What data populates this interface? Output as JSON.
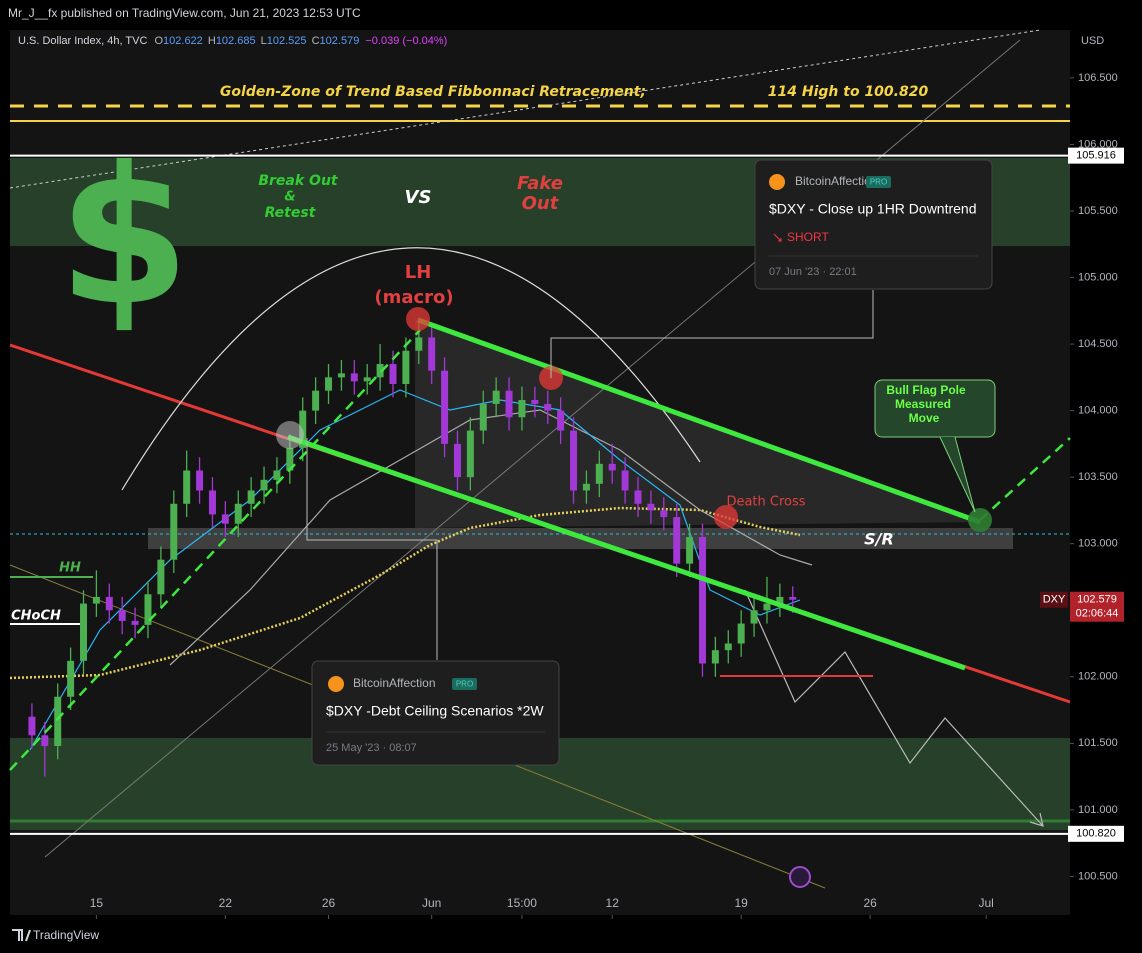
{
  "header": {
    "published": "Mr_J__fx published on TradingView.com, Jun 21, 2023 12:53 UTC",
    "symbol": "U.S. Dollar Index, 4h, TVC",
    "open_key": "O",
    "open": "102.622",
    "high_key": "H",
    "high": "102.685",
    "low_key": "L",
    "low": "102.525",
    "close_key": "C",
    "close": "102.579",
    "change": "−0.039 (−0.04%)",
    "currency": "USD"
  },
  "chart_data": {
    "type": "candlestick",
    "up_color": "#4caf50",
    "down_color": "#a238d6",
    "grid": false,
    "x": [
      -2.5,
      -2,
      -1.5,
      -1,
      -0.5,
      0,
      0.5,
      1,
      1.5,
      2,
      2.5,
      3,
      3.5,
      4,
      4.5,
      5,
      5.5,
      6,
      6.5,
      7,
      7.5,
      8,
      8.5,
      9,
      9.5,
      10,
      10.5,
      11,
      11.5,
      12,
      12.5,
      13,
      13.5,
      14,
      14.5,
      15,
      15.5,
      16,
      16.5,
      17,
      17.5,
      18,
      18.5,
      19,
      19.5,
      20,
      20.5,
      21,
      21.5,
      22,
      22.5,
      23,
      23.5,
      24,
      24.5,
      25,
      25.5,
      26,
      26.5,
      27
    ],
    "open": [
      101.7,
      101.56,
      101.48,
      101.85,
      102.12,
      102.55,
      102.6,
      102.5,
      102.42,
      102.39,
      102.62,
      102.88,
      103.3,
      103.55,
      103.4,
      103.22,
      103.15,
      103.3,
      103.4,
      103.48,
      103.55,
      103.72,
      104.0,
      104.15,
      104.25,
      104.28,
      104.22,
      104.25,
      104.35,
      104.2,
      104.45,
      104.55,
      104.3,
      103.75,
      103.5,
      103.85,
      104.05,
      104.15,
      103.95,
      104.08,
      104.05,
      104.0,
      103.85,
      103.4,
      103.45,
      103.6,
      103.55,
      103.4,
      103.3,
      103.25,
      103.2,
      102.85,
      103.05,
      102.1,
      102.2,
      102.25,
      102.4,
      102.5,
      102.55,
      102.6
    ],
    "high": [
      101.8,
      101.66,
      101.95,
      102.22,
      102.65,
      102.8,
      102.7,
      102.6,
      102.52,
      102.72,
      102.98,
      103.4,
      103.7,
      103.65,
      103.5,
      103.32,
      103.4,
      103.5,
      103.58,
      103.65,
      103.82,
      104.1,
      104.25,
      104.35,
      104.38,
      104.38,
      104.35,
      104.5,
      104.45,
      104.55,
      104.7,
      104.65,
      104.4,
      103.85,
      103.95,
      104.15,
      104.25,
      104.25,
      104.18,
      104.18,
      104.15,
      104.1,
      103.95,
      103.55,
      103.7,
      103.75,
      103.65,
      103.5,
      103.4,
      103.35,
      103.3,
      103.15,
      103.15,
      102.3,
      102.35,
      102.5,
      102.6,
      102.75,
      102.7,
      102.68
    ],
    "low": [
      101.46,
      101.25,
      101.38,
      101.75,
      102.02,
      102.45,
      102.4,
      102.32,
      102.29,
      102.29,
      102.52,
      102.78,
      103.2,
      103.3,
      103.12,
      103.05,
      103.05,
      103.2,
      103.3,
      103.38,
      103.45,
      103.62,
      103.9,
      104.05,
      104.15,
      104.12,
      104.12,
      104.15,
      104.1,
      104.1,
      104.35,
      104.2,
      103.65,
      103.4,
      103.4,
      103.75,
      103.95,
      103.85,
      103.85,
      103.95,
      103.9,
      103.75,
      103.3,
      103.3,
      103.35,
      103.45,
      103.3,
      103.2,
      103.15,
      103.1,
      102.75,
      102.75,
      102.0,
      102.0,
      102.1,
      102.15,
      102.3,
      102.4,
      102.45,
      102.48
    ],
    "close": [
      101.56,
      101.48,
      101.85,
      102.12,
      102.55,
      102.6,
      102.5,
      102.42,
      102.39,
      102.62,
      102.88,
      103.3,
      103.55,
      103.4,
      103.22,
      103.15,
      103.3,
      103.4,
      103.48,
      103.55,
      103.72,
      104.0,
      104.15,
      104.25,
      104.28,
      104.22,
      104.25,
      104.35,
      104.2,
      104.45,
      104.55,
      104.3,
      103.75,
      103.5,
      103.85,
      104.05,
      104.15,
      103.95,
      104.08,
      104.05,
      104.0,
      103.85,
      103.4,
      103.45,
      103.6,
      103.55,
      103.4,
      103.3,
      103.25,
      103.2,
      102.85,
      103.05,
      102.1,
      102.2,
      102.25,
      102.4,
      102.5,
      102.55,
      102.6,
      102.579
    ],
    "xlim": [
      -3.35,
      37.75
    ],
    "xticks": [
      {
        "value": 0,
        "label": "15"
      },
      {
        "value": 5,
        "label": "22"
      },
      {
        "value": 9,
        "label": "26"
      },
      {
        "value": 13,
        "label": "Jun"
      },
      {
        "value": 16.5,
        "label": "15:00"
      },
      {
        "value": 20,
        "label": "12"
      },
      {
        "value": 25,
        "label": "19"
      },
      {
        "value": 30,
        "label": "26"
      },
      {
        "value": 34.5,
        "label": "Jul"
      }
    ],
    "ylim": [
      100.21,
      106.86
    ],
    "yticks": [
      {
        "value": 106.5,
        "label": "106.500"
      },
      {
        "value": 106,
        "label": "106.000"
      },
      {
        "value": 105.5,
        "label": "105.500"
      },
      {
        "value": 105,
        "label": "105.000"
      },
      {
        "value": 104.5,
        "label": "104.500"
      },
      {
        "value": 104,
        "label": "104.000"
      },
      {
        "value": 103.5,
        "label": "103.500"
      },
      {
        "value": 103,
        "label": "103.000"
      },
      {
        "value": 102,
        "label": "102.000"
      },
      {
        "value": 101.5,
        "label": "101.500"
      },
      {
        "value": 101,
        "label": "101.000"
      },
      {
        "value": 100.5,
        "label": "100.500"
      }
    ],
    "levels": [
      {
        "value": 105.916,
        "label": "105.916"
      },
      {
        "value": 100.82,
        "label": "100.820"
      }
    ],
    "last_price": {
      "value": 102.579,
      "label": "102.579",
      "symbol": "DXY",
      "countdown": "02:06:44"
    },
    "annotations": [
      "Golden-Zone of Trend Based Fibbonnaci Retracement;",
      "114 High to 100.820",
      "$",
      "Break Out",
      "&",
      "Retest",
      "VS",
      "Fake",
      "Out",
      "LH",
      "(macro)",
      "Death Cross",
      "S/R",
      "HH",
      "CHoCH",
      "Bull Flag Pole",
      "Measured",
      "Move"
    ]
  },
  "ideas": [
    {
      "author": "BitcoinAffection",
      "badge": "PRO",
      "title": "$DXY - Close up 1HR Downtrend",
      "direction": "SHORT",
      "date": "07 Jun '23 · 22:01"
    },
    {
      "author": "BitcoinAffection",
      "badge": "PRO",
      "title": "$DXY -Debt Ceiling Scenarios *2W",
      "date": "25 May '23 · 08:07"
    }
  ],
  "footer": {
    "brand": "TradingView"
  }
}
